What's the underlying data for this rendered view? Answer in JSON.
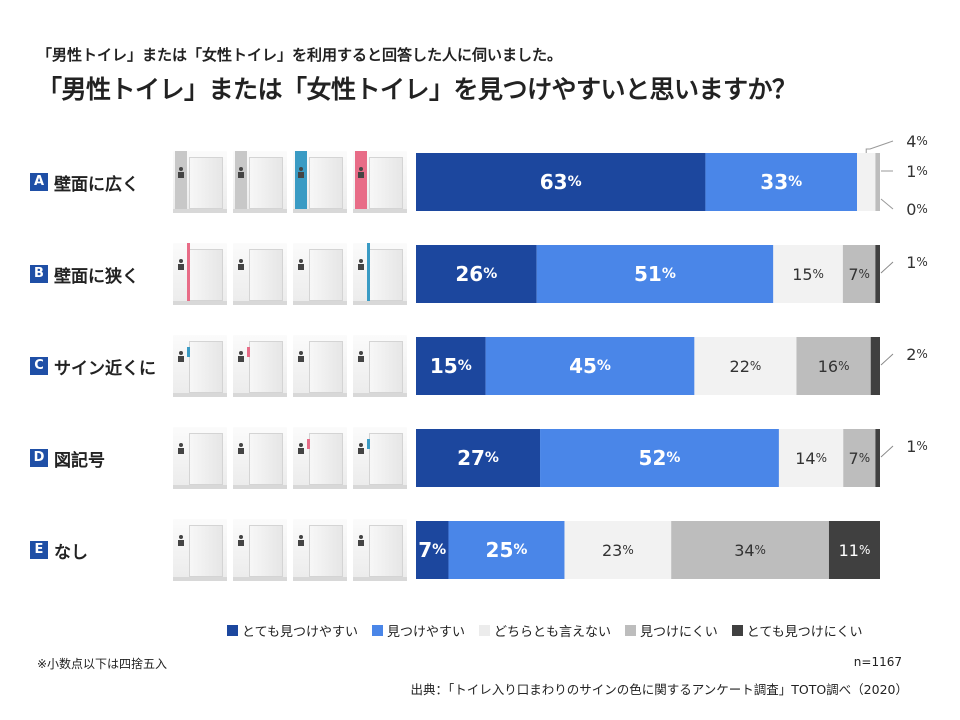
{
  "subtitle": "「男性トイレ」または「女性トイレ」を利用すると回答した人に伺いました。",
  "title": "「男性トイレ」または「女性トイレ」を見つけやすいと思いますか？",
  "colors": {
    "very_easy": "#1c479e",
    "easy": "#4a86e8",
    "neutral": "#f2f2f2",
    "hard": "#bdbdbd",
    "very_hard": "#404040",
    "badge": "#1f4fa6"
  },
  "chart_data": {
    "type": "bar",
    "orientation": "horizontal-stacked-100",
    "categories": [
      "壁面に広く",
      "壁面に狭く",
      "サイン近くに",
      "図記号",
      "なし"
    ],
    "category_keys": [
      "A",
      "B",
      "C",
      "D",
      "E"
    ],
    "series": [
      {
        "name": "とても見つけやすい",
        "values": [
          63,
          26,
          15,
          27,
          7
        ]
      },
      {
        "name": "見つけやすい",
        "values": [
          33,
          51,
          45,
          52,
          25
        ]
      },
      {
        "name": "どちらとも言えない",
        "values": [
          4,
          15,
          22,
          14,
          23
        ]
      },
      {
        "name": "見つけにくい",
        "values": [
          1,
          7,
          16,
          7,
          34
        ]
      },
      {
        "name": "とても見つけにくい",
        "values": [
          0,
          1,
          2,
          1,
          11
        ]
      }
    ],
    "unit": "%",
    "legend_position": "bottom-right"
  },
  "thumbnails": [
    [
      "gray",
      "gray",
      "blue",
      "pink"
    ],
    [
      "pink-thin",
      "none",
      "none",
      "blue-thin"
    ],
    [
      "blue-small",
      "pink-small",
      "none",
      "none"
    ],
    [
      "none",
      "none",
      "pink-small",
      "blue-small"
    ],
    [
      "none",
      "none",
      "none",
      "none"
    ]
  ],
  "note": "※小数点以下は四捨五入",
  "n_count": "n=1167",
  "source": "出典：「トイレ入り口まわりのサインの色に関するアンケート調査」TOTO調べ（2020）"
}
